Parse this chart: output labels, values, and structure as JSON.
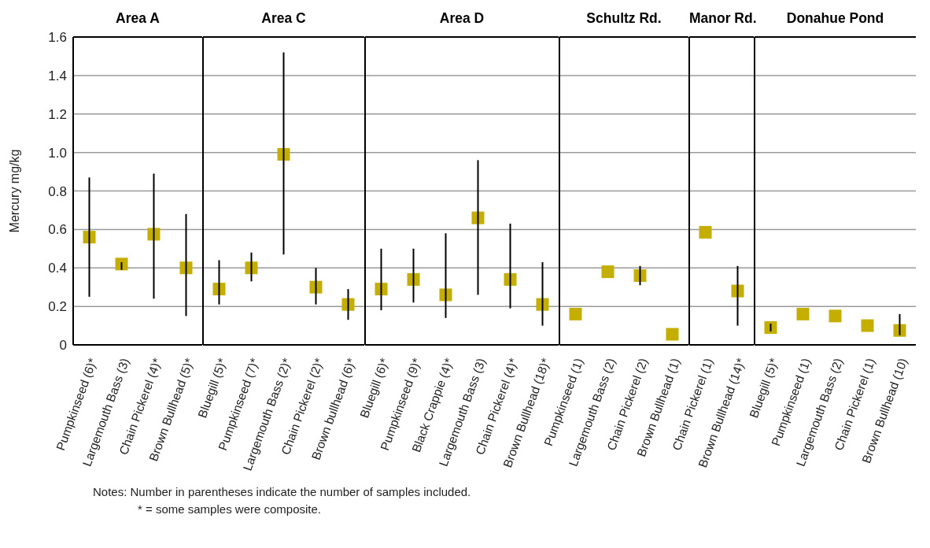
{
  "chart_data": [
    {
      "type": "scatter",
      "title": "Area A",
      "ylabel": "Mercury mg/kg",
      "categories": [
        "Pumpkinseed (6)*",
        "Largemouth Bass (3)",
        "Chain Pickerel (4)*",
        "Brown Bullhead (5)*"
      ],
      "series": [
        {
          "color": "#c4ae00",
          "values": [
            0.56,
            0.42,
            0.575,
            0.4
          ],
          "errors": [
            [
              0.25,
              0.87
            ],
            [
              0.39,
              0.43
            ],
            [
              0.24,
              0.89
            ],
            [
              0.15,
              0.68
            ]
          ]
        }
      ],
      "ylim": [
        0,
        1.6
      ],
      "yticks": [
        0,
        0.2,
        0.4,
        0.6,
        0.8,
        {
          "value": 1,
          "label": "1.0"
        },
        1.2,
        1.4,
        1.6
      ],
      "grid": "y",
      "marker": "square",
      "legend": false,
      "annotations": [
        "Notes: Number in parentheses indicate the number of samples included.",
        "* = some samples were composite."
      ]
    },
    {
      "type": "scatter",
      "title": "Area C",
      "categories": [
        "Bluegill (5)*",
        "Pumpkinseed (7)*",
        "Largemouth Bass (2)*",
        "Chain Pickerel (2)*",
        "Brown bullhead (6)*"
      ],
      "series": [
        {
          "color": "#c4ae00",
          "values": [
            0.29,
            0.4,
            0.99,
            0.3,
            0.21
          ],
          "errors": [
            [
              0.21,
              0.44
            ],
            [
              0.33,
              0.48
            ],
            [
              0.47,
              1.52
            ],
            [
              0.21,
              0.4
            ],
            [
              0.13,
              0.29
            ]
          ]
        }
      ],
      "ylim": [
        0,
        1.6
      ],
      "yticks": [
        0,
        0.2,
        0.4,
        0.6,
        0.8,
        1,
        1.2,
        1.4,
        1.6
      ],
      "grid": "y",
      "marker": "square",
      "legend": false,
      "tick_labels": "x"
    },
    {
      "type": "scatter",
      "title": "Area D",
      "categories": [
        "Bluegill (6)*",
        "Pumpkinseed (9)*",
        "Black Crappie (4)*",
        "Largemouth Bass (3)",
        "Chain Pickerel (4)*",
        "Brown Bullhead (18)*"
      ],
      "series": [
        {
          "color": "#c4ae00",
          "values": [
            0.29,
            0.34,
            0.26,
            0.66,
            0.34,
            0.21
          ],
          "errors": [
            [
              0.18,
              0.5
            ],
            [
              0.22,
              0.5
            ],
            [
              0.14,
              0.58
            ],
            [
              0.26,
              0.96
            ],
            [
              0.19,
              0.63
            ],
            [
              0.1,
              0.43
            ]
          ]
        }
      ],
      "ylim": [
        0,
        1.6
      ],
      "yticks": [
        0,
        0.2,
        0.4,
        0.6,
        0.8,
        1,
        1.2,
        1.4,
        1.6
      ],
      "grid": "y",
      "marker": "square",
      "legend": false,
      "tick_labels": "x"
    },
    {
      "type": "scatter",
      "title": "Schultz Rd.",
      "categories": [
        "Pumpkinseed (1)",
        "Largemouth Bass (2)",
        "Chain Pickerel (2)",
        "Brown Bullhead (1)"
      ],
      "series": [
        {
          "color": "#c4ae00",
          "values": [
            0.16,
            0.38,
            0.36,
            0.055
          ],
          "errors": [
            null,
            null,
            [
              0.31,
              0.41
            ],
            null
          ]
        }
      ],
      "ylim": [
        0,
        1.6
      ],
      "yticks": [
        0,
        0.2,
        0.4,
        0.6,
        0.8,
        1,
        1.2,
        1.4,
        1.6
      ],
      "grid": "y",
      "marker": "square",
      "legend": false,
      "tick_labels": "x"
    },
    {
      "type": "scatter",
      "title": "Manor Rd.",
      "categories": [
        "Chain Pickerel (1)",
        "Brown Bullhead (14)*"
      ],
      "series": [
        {
          "color": "#c4ae00",
          "values": [
            0.585,
            0.28
          ],
          "errors": [
            null,
            [
              0.1,
              0.41
            ]
          ]
        }
      ],
      "ylim": [
        0,
        1.6
      ],
      "yticks": [
        0,
        0.2,
        0.4,
        0.6,
        0.8,
        1,
        1.2,
        1.4,
        1.6
      ],
      "grid": "y",
      "marker": "square",
      "legend": false,
      "tick_labels": "x"
    },
    {
      "type": "scatter",
      "title": "Donahue Pond",
      "categories": [
        "Bluegill (5)*",
        "Pumpkinseed (1)",
        "Largemouth Bass (2)",
        "Chain Pickerel (1)",
        "Brown Bullhead (10)"
      ],
      "series": [
        {
          "color": "#c4ae00",
          "values": [
            0.09,
            0.16,
            0.15,
            0.1,
            0.075
          ],
          "errors": [
            [
              0.07,
              0.11
            ],
            null,
            null,
            null,
            [
              0.05,
              0.16
            ]
          ]
        }
      ],
      "ylim": [
        0,
        1.6
      ],
      "yticks": [
        0,
        0.2,
        0.4,
        0.6,
        0.8,
        1,
        1.2,
        1.4,
        1.6
      ],
      "grid": "y",
      "marker": "square",
      "legend": false,
      "tick_labels": "x"
    }
  ]
}
